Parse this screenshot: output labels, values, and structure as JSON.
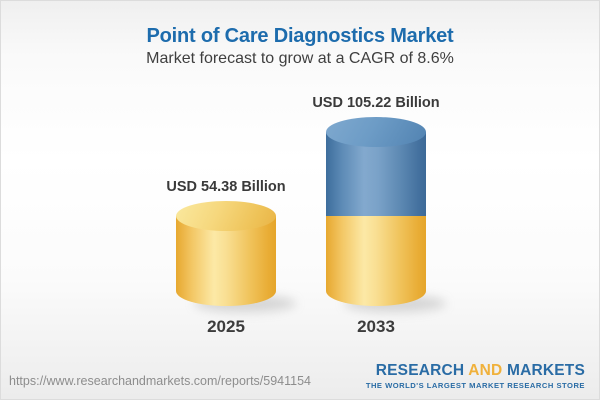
{
  "chart_data": {
    "type": "bar",
    "title": "Point of Care Diagnostics Market",
    "subtitle": "Market forecast to grow at a CAGR of 8.6%",
    "cagr_percent": 8.6,
    "unit": "USD Billion",
    "categories": [
      "2025",
      "2033"
    ],
    "values": [
      54.38,
      105.22
    ],
    "value_labels": [
      "USD 54.38 Billion",
      "USD 105.22 Billion"
    ],
    "stacking_note": "2033 cylinder is stacked: base segment equals 2025 value (yellow), growth segment above it (blue)",
    "ylim": [
      0,
      120
    ],
    "grid": false,
    "legend": false,
    "colors": {
      "base_segment": "#f0c35b",
      "growth_segment": "#5d8cb8",
      "title_text": "#1d6cad",
      "label_text": "#3a3a3a"
    }
  },
  "footer": {
    "url": "https://www.researchandmarkets.com/reports/5941154",
    "logo": {
      "word1": "RESEARCH",
      "word2": "AND",
      "word3": "MARKETS",
      "tagline": "THE WORLD'S LARGEST MARKET RESEARCH STORE"
    }
  }
}
